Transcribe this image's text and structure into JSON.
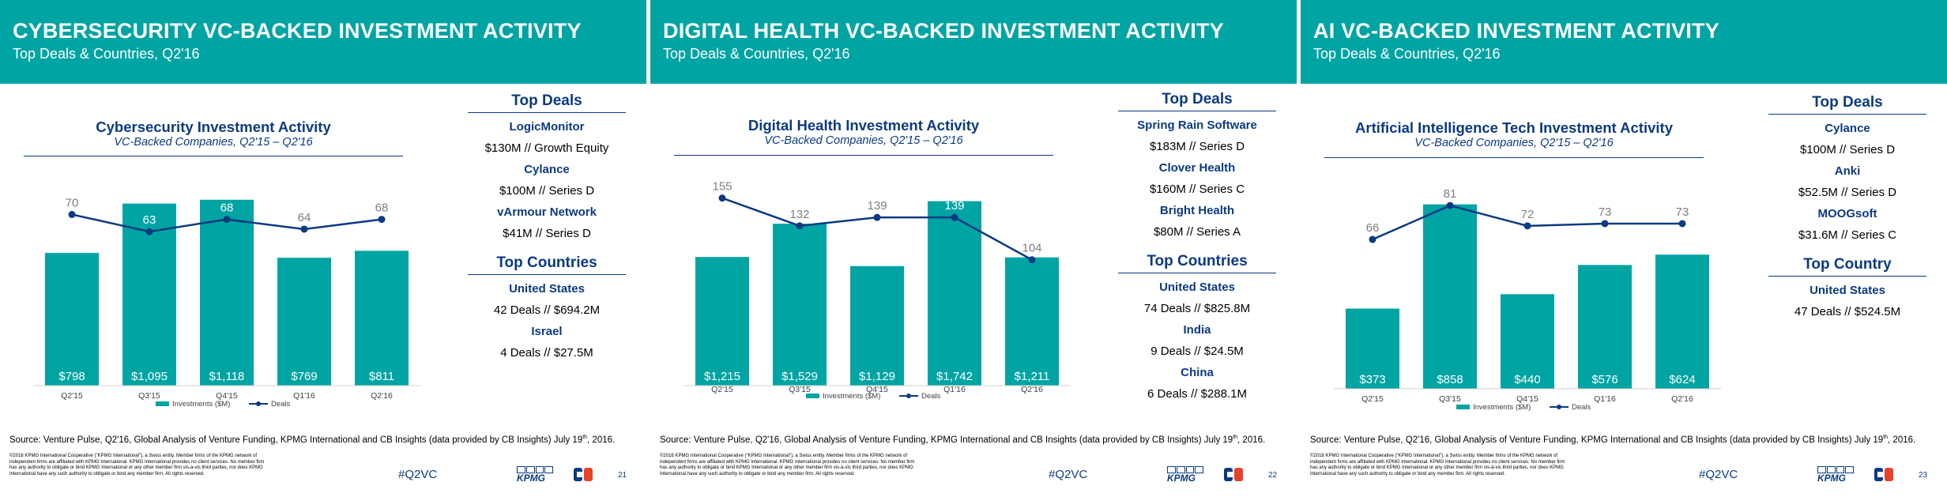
{
  "colors": {
    "teal": "#00a4a3",
    "navy": "#0b3a82",
    "axis": "#404040"
  },
  "footer_legal": "©2016 KPMG International Cooperative (\"KPMG International\"), a Swiss entity. Member firms of the KPMG network of independent firms are affiliated with KPMG International. KPMG International provides no client services. No member firm has any authority to obligate or bind KPMG International or any other member firm vis-à-vis third parties, nor does KPMG International have any such authority to obligate or bind any member firm. All rights reserved.",
  "source_text": "Source: Venture Pulse, Q2'16, Global Analysis of Venture Funding, KPMG International and CB Insights (data provided by CB Insights) July 19",
  "source_sup": "th",
  "source_end": ", 2016.",
  "hashtag": "#Q2VC",
  "kpmg_text": "KPMG",
  "slides": [
    {
      "header_title": "CYBERSECURITY VC-BACKED INVESTMENT ACTIVITY",
      "header_subtitle": "Top Deals & Countries, Q2'16",
      "top_heading": "Top Deals",
      "deals": [
        {
          "name": "LogicMonitor",
          "detail": "$130M // Growth Equity"
        },
        {
          "name": "Cylance",
          "detail": "$100M // Series D"
        },
        {
          "name": "vArmour Network",
          "detail": "$41M // Series D"
        }
      ],
      "countries_heading": "Top Countries",
      "countries": [
        {
          "name": "United States",
          "detail": "42 Deals // $694.2M"
        },
        {
          "name": "Israel",
          "detail": "4 Deals // $27.5M"
        }
      ],
      "page_number": "21"
    },
    {
      "header_title": "DIGITAL HEALTH VC-BACKED INVESTMENT ACTIVITY",
      "header_subtitle": "Top Deals & Countries, Q2'16",
      "top_heading": "Top Deals",
      "deals": [
        {
          "name": "Spring Rain Software",
          "detail": "$183M // Series D"
        },
        {
          "name": "Clover Health",
          "detail": "$160M // Series C"
        },
        {
          "name": "Bright Health",
          "detail": "$80M // Series A"
        }
      ],
      "countries_heading": "Top Countries",
      "countries": [
        {
          "name": "United States",
          "detail": "74 Deals // $825.8M"
        },
        {
          "name": "India",
          "detail": "9 Deals // $24.5M"
        },
        {
          "name": "China",
          "detail": "6 Deals // $288.1M"
        }
      ],
      "page_number": "22"
    },
    {
      "header_title": "AI VC-BACKED INVESTMENT ACTIVITY",
      "header_subtitle": "Top Deals & Countries, Q2'16",
      "top_heading": "Top Deals",
      "deals": [
        {
          "name": "Cylance",
          "detail": "$100M // Series D"
        },
        {
          "name": "Anki",
          "detail": "$52.5M // Series D"
        },
        {
          "name": "MOOGsoft",
          "detail": "$31.6M // Series C"
        }
      ],
      "countries_heading": "Top Country",
      "countries": [
        {
          "name": "United States",
          "detail": "47 Deals // $524.5M"
        }
      ],
      "page_number": "23"
    }
  ],
  "chart_data": [
    {
      "type": "bar",
      "title": "Cybersecurity Investment Activity",
      "subtitle": "VC-Backed Companies, Q2'15 – Q2'16",
      "categories": [
        "Q2'15",
        "Q3'15",
        "Q4'15",
        "Q1'16",
        "Q2'16"
      ],
      "series": [
        {
          "name": "Investments ($M)",
          "kind": "bar",
          "values": [
            798,
            1095,
            1118,
            769,
            811
          ],
          "labels": [
            "$798",
            "$1,095",
            "$1,118",
            "$769",
            "$811"
          ]
        },
        {
          "name": "Deals",
          "kind": "line",
          "values": [
            70,
            63,
            68,
            64,
            68
          ]
        }
      ],
      "legend": [
        "Investments ($M)",
        "Deals"
      ],
      "ylim": [
        0,
        1250
      ],
      "y2lim": [
        0,
        85
      ]
    },
    {
      "type": "bar",
      "title": "Digital Health Investment Activity",
      "subtitle": "VC-Backed Companies, Q2'15 – Q2'16",
      "categories": [
        "Q2'15",
        "Q3'15",
        "Q4'15",
        "Q1'16",
        "Q2'16"
      ],
      "series": [
        {
          "name": "Investments ($M)",
          "kind": "bar",
          "values": [
            1215,
            1529,
            1129,
            1742,
            1211
          ],
          "labels": [
            "$1,215",
            "$1,529",
            "$1,129",
            "$1,742",
            "$1,211"
          ]
        },
        {
          "name": "Deals",
          "kind": "line",
          "values": [
            155,
            132,
            139,
            139,
            104
          ]
        }
      ],
      "legend": [
        "Investments ($M)",
        "Deals"
      ],
      "ylim": [
        0,
        2000
      ],
      "y2lim": [
        0,
        175
      ]
    },
    {
      "type": "bar",
      "title": "Artificial Intelligence Tech Investment Activity",
      "subtitle": "VC-Backed Companies, Q2'15 – Q2'16",
      "categories": [
        "Q2'15",
        "Q3'15",
        "Q4'15",
        "Q1'16",
        "Q2'16"
      ],
      "series": [
        {
          "name": "Investments ($M)",
          "kind": "bar",
          "values": [
            373,
            858,
            440,
            576,
            624
          ],
          "labels": [
            "$373",
            "$858",
            "$440",
            "$576",
            "$624"
          ]
        },
        {
          "name": "Deals",
          "kind": "line",
          "values": [
            66,
            81,
            72,
            73,
            73
          ]
        }
      ],
      "legend": [
        "Investments ($M)",
        "Deals"
      ],
      "ylim": [
        0,
        1000
      ],
      "y2lim": [
        0,
        95
      ]
    }
  ]
}
